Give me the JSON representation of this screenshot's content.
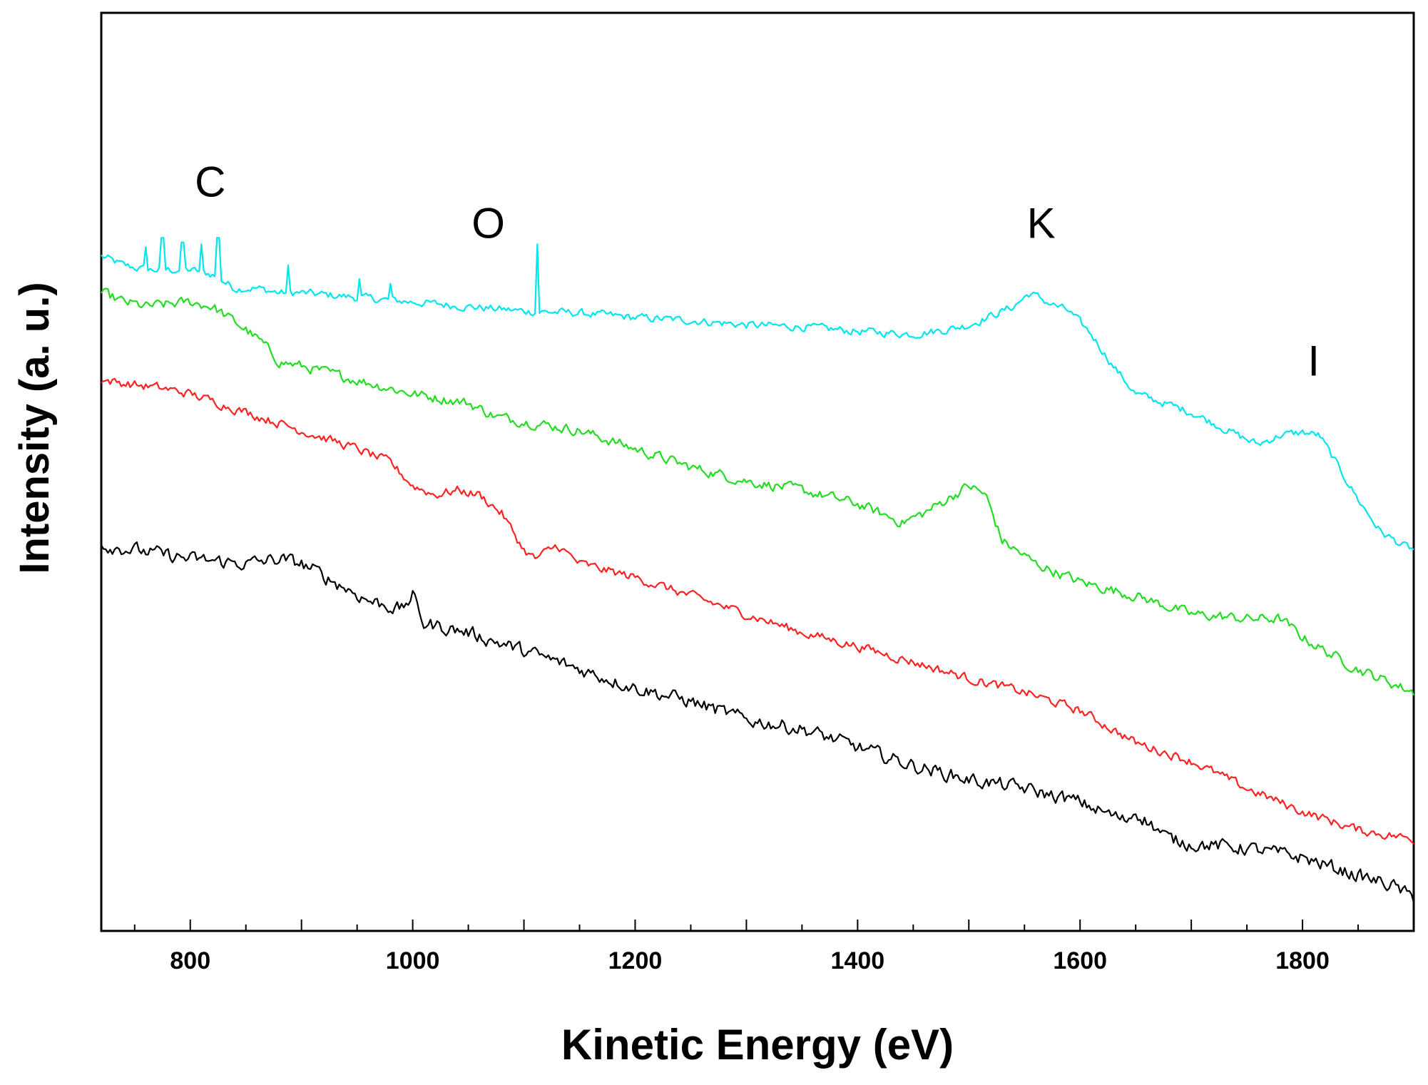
{
  "chart_data": {
    "type": "line",
    "xlabel": "Kinetic Energy (eV)",
    "ylabel": "Intensity (a. u.)",
    "xlim": [
      720,
      1900
    ],
    "ylim": [
      0,
      100
    ],
    "x_ticks": [
      800,
      1000,
      1200,
      1400,
      1600,
      1800
    ],
    "x_tick_labels": [
      "800",
      "1000",
      "1200",
      "1400",
      "1600",
      "1800"
    ],
    "y_ticks": [],
    "grid": false,
    "legend": "none",
    "annotations": [
      {
        "text": "C",
        "x": 818,
        "y": 80
      },
      {
        "text": "O",
        "x": 1068,
        "y": 75.5
      },
      {
        "text": "K",
        "x": 1565,
        "y": 75.5
      },
      {
        "text": "I",
        "x": 1810,
        "y": 60.5
      }
    ],
    "series": [
      {
        "color": "#00e5ee",
        "noise": 0.7,
        "x": [
          720,
          740,
          760,
          780,
          800,
          820,
          840,
          860,
          880,
          900,
          950,
          1000,
          1050,
          1100,
          1150,
          1200,
          1250,
          1300,
          1350,
          1400,
          1450,
          1480,
          1500,
          1520,
          1540,
          1555,
          1570,
          1590,
          1610,
          1630,
          1650,
          1700,
          1750,
          1760,
          1780,
          1800,
          1815,
          1830,
          1850,
          1870,
          1890,
          1900
        ],
        "y": [
          73.5,
          72.5,
          72,
          72,
          72,
          71.5,
          70,
          70,
          69.5,
          69.5,
          69,
          68.5,
          68,
          67.5,
          67.3,
          66.8,
          66.5,
          66,
          65.8,
          65.3,
          65,
          65.5,
          66,
          67,
          68,
          69.5,
          68.5,
          67.5,
          65,
          61.5,
          58.5,
          56.5,
          53.5,
          53,
          54,
          54.3,
          54,
          51,
          47,
          43.5,
          42,
          41.5
        ],
        "spikes": [
          {
            "x": 760,
            "y": 74.5
          },
          {
            "x": 775,
            "y": 75.5
          },
          {
            "x": 793,
            "y": 75
          },
          {
            "x": 810,
            "y": 74.8
          },
          {
            "x": 825,
            "y": 75.5
          },
          {
            "x": 888,
            "y": 72.5
          },
          {
            "x": 952,
            "y": 71
          },
          {
            "x": 980,
            "y": 70.5
          },
          {
            "x": 1112,
            "y": 74.8
          }
        ]
      },
      {
        "color": "#22dd22",
        "noise": 0.9,
        "x": [
          720,
          740,
          760,
          800,
          820,
          850,
          865,
          880,
          900,
          950,
          1000,
          1050,
          1075,
          1100,
          1150,
          1200,
          1250,
          1300,
          1350,
          1400,
          1440,
          1460,
          1480,
          1500,
          1515,
          1530,
          1560,
          1600,
          1650,
          1700,
          1750,
          1780,
          1800,
          1820,
          1850,
          1880,
          1900
        ],
        "y": [
          69.5,
          68.5,
          68,
          68.5,
          68,
          65.5,
          64,
          62,
          61.5,
          60,
          58.5,
          57.5,
          56,
          55.5,
          54.5,
          52.5,
          50.5,
          49,
          48,
          46.5,
          44.5,
          45.5,
          47,
          48.5,
          47.5,
          42.5,
          40,
          38,
          36.5,
          34.5,
          34,
          34,
          32,
          30.5,
          28.5,
          27,
          26
        ]
      },
      {
        "color": "#ff2222",
        "noise": 0.8,
        "x": [
          720,
          750,
          780,
          800,
          850,
          900,
          950,
          980,
          1000,
          1020,
          1040,
          1060,
          1080,
          1100,
          1110,
          1130,
          1150,
          1200,
          1250,
          1300,
          1350,
          1400,
          1450,
          1500,
          1550,
          1600,
          1650,
          1700,
          1750,
          1800,
          1850,
          1900
        ],
        "y": [
          60,
          59.5,
          59,
          58.5,
          56.5,
          54.5,
          52.5,
          51,
          48.5,
          47.5,
          48,
          47.5,
          45.5,
          41.5,
          40.5,
          42,
          40,
          38.5,
          36.5,
          34.5,
          32.5,
          31,
          29.3,
          27.5,
          26,
          24,
          20.5,
          18.5,
          15.5,
          13,
          11,
          10
        ]
      },
      {
        "color": "#000000",
        "noise": 1.2,
        "x": [
          720,
          750,
          800,
          850,
          880,
          900,
          930,
          960,
          990,
          1000,
          1010,
          1050,
          1100,
          1150,
          1200,
          1250,
          1300,
          1350,
          1400,
          1450,
          1500,
          1550,
          1600,
          1640,
          1650,
          1680,
          1700,
          1750,
          1800,
          1850,
          1880,
          1900
        ],
        "y": [
          42,
          41.5,
          40.5,
          40,
          40.5,
          40,
          38,
          36,
          35,
          36.5,
          33.5,
          32.5,
          30.5,
          28.5,
          26.5,
          25,
          23,
          22,
          20,
          18,
          16.5,
          15.5,
          14,
          12,
          13,
          10,
          9.5,
          9,
          8,
          6,
          5,
          3.5
        ]
      }
    ]
  }
}
